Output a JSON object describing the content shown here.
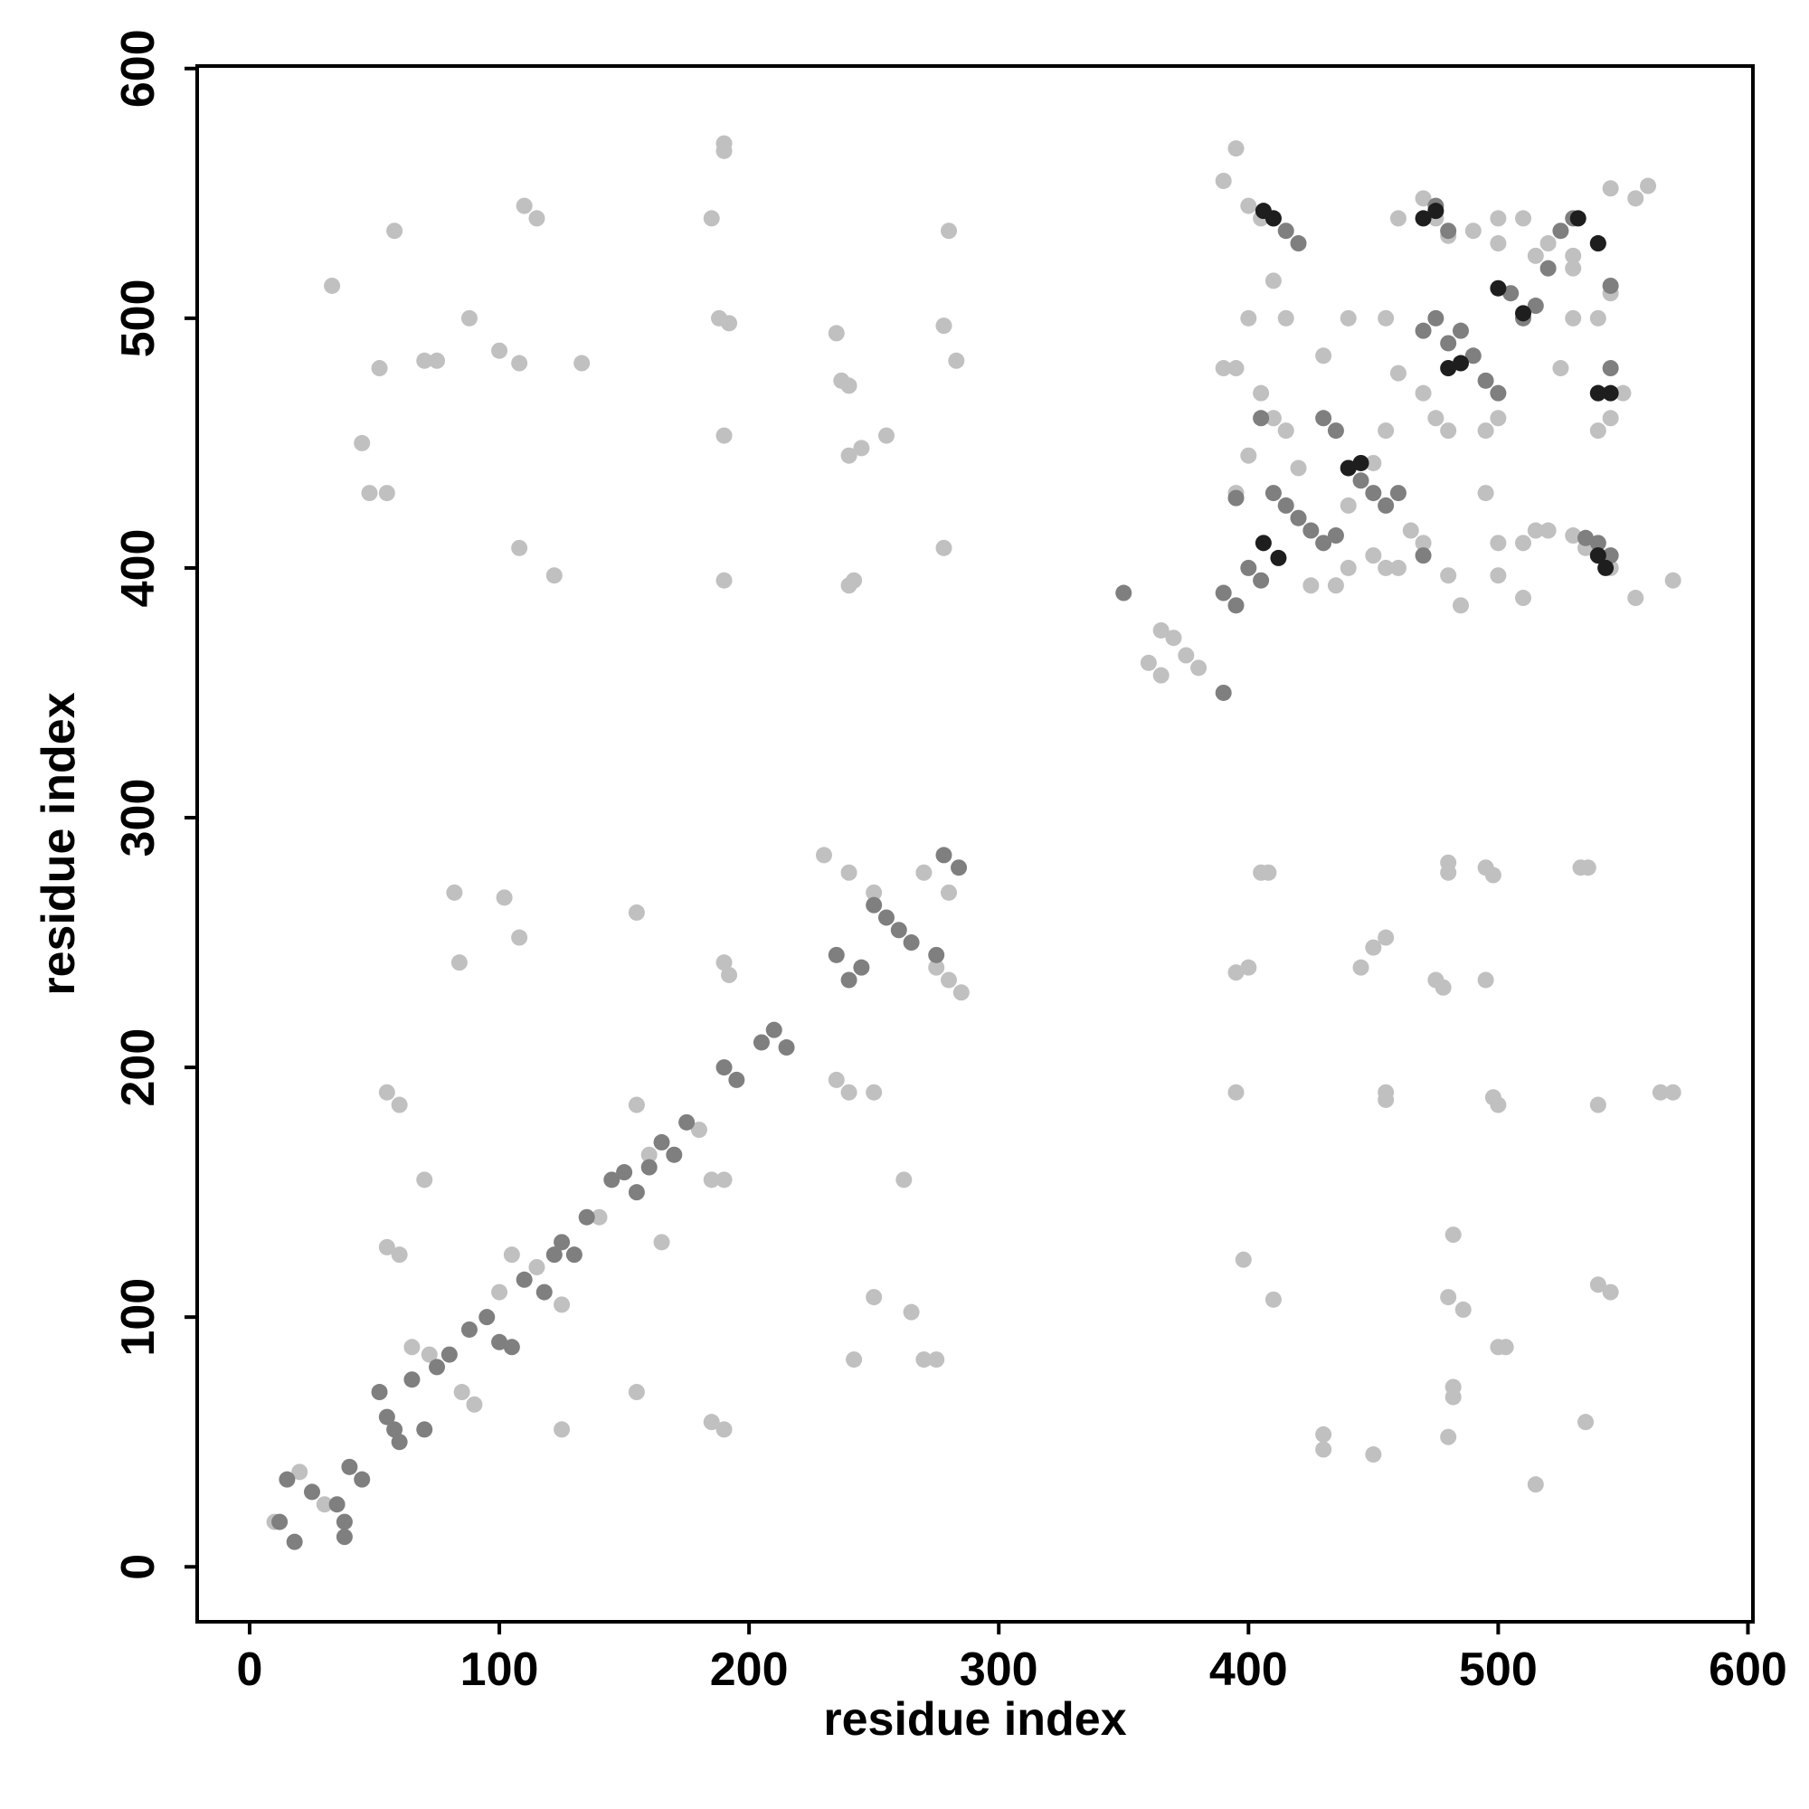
{
  "chart_data": {
    "type": "scatter",
    "x_label": "residue index",
    "y_label": "residue index",
    "xlim": [
      -21,
      602
    ],
    "ylim": [
      -22,
      601
    ],
    "xticks": [
      0,
      100,
      200,
      300,
      400,
      500,
      600
    ],
    "yticks": [
      0,
      100,
      200,
      300,
      400,
      500,
      600
    ],
    "series": [
      {
        "color": "#c0c0c0",
        "x": [
          10,
          20,
          30,
          55,
          60,
          65,
          72,
          85,
          90,
          100,
          105,
          115,
          125,
          140,
          155,
          160,
          180,
          185,
          190,
          240,
          250,
          235,
          250,
          270,
          280,
          285,
          230,
          240,
          275,
          280,
          60,
          55,
          70,
          82,
          84,
          102,
          108,
          165,
          155,
          155,
          185,
          190,
          125,
          250,
          265,
          242,
          270,
          275,
          262,
          190,
          192,
          33,
          58,
          52,
          70,
          75,
          88,
          100,
          108,
          110,
          115,
          133,
          185,
          188,
          192,
          190,
          190,
          190,
          45,
          48,
          55,
          108,
          122,
          190,
          235,
          237,
          240,
          240,
          245,
          255,
          240,
          242,
          280,
          278,
          283,
          278,
          395,
          390,
          400,
          405,
          410,
          415,
          400,
          395,
          390,
          405,
          410,
          415,
          400,
          420,
          395,
          430,
          440,
          455,
          460,
          470,
          475,
          480,
          455,
          450,
          440,
          465,
          470,
          460,
          450,
          485,
          480,
          495,
          500,
          495,
          500,
          510,
          515,
          520,
          500,
          510,
          530,
          535,
          545,
          555,
          570,
          540,
          545,
          525,
          530,
          540,
          545,
          550,
          530,
          520,
          510,
          500,
          490,
          475,
          470,
          460,
          480,
          500,
          515,
          530,
          545,
          555,
          560,
          455,
          440,
          420,
          425,
          435,
          365,
          370,
          375,
          360,
          365,
          380,
          395,
          400,
          395,
          405,
          408,
          398,
          410,
          430,
          430,
          450,
          445,
          450,
          455,
          455,
          455,
          475,
          478,
          480,
          480,
          482,
          480,
          486,
          482,
          482,
          480,
          495,
          498,
          495,
          498,
          500,
          500,
          503,
          515,
          533,
          536,
          535,
          540,
          545,
          540,
          565,
          570
        ],
        "y": [
          18,
          38,
          25,
          190,
          185,
          88,
          85,
          70,
          65,
          110,
          125,
          120,
          105,
          140,
          185,
          165,
          175,
          155,
          155,
          190,
          190,
          195,
          270,
          278,
          270,
          230,
          285,
          278,
          240,
          235,
          125,
          128,
          155,
          270,
          242,
          268,
          252,
          130,
          262,
          70,
          58,
          55,
          55,
          108,
          102,
          83,
          83,
          83,
          155,
          242,
          237,
          513,
          535,
          480,
          483,
          483,
          500,
          487,
          482,
          545,
          540,
          482,
          540,
          500,
          498,
          570,
          567,
          453,
          450,
          430,
          430,
          408,
          397,
          395,
          494,
          475,
          473,
          445,
          448,
          453,
          393,
          395,
          535,
          497,
          483,
          408,
          568,
          555,
          545,
          540,
          515,
          500,
          500,
          480,
          480,
          470,
          460,
          455,
          445,
          440,
          430,
          485,
          500,
          500,
          478,
          470,
          460,
          455,
          455,
          442,
          425,
          415,
          410,
          400,
          405,
          385,
          397,
          455,
          460,
          430,
          397,
          410,
          415,
          415,
          410,
          388,
          413,
          408,
          400,
          388,
          395,
          455,
          460,
          480,
          500,
          500,
          510,
          470,
          525,
          530,
          540,
          540,
          535,
          540,
          548,
          540,
          533,
          530,
          525,
          520,
          552,
          548,
          553,
          400,
          400,
          420,
          393,
          393,
          375,
          372,
          365,
          362,
          357,
          360,
          238,
          240,
          190,
          278,
          278,
          123,
          107,
          53,
          47,
          45,
          240,
          248,
          252,
          190,
          187,
          235,
          232,
          282,
          278,
          133,
          108,
          103,
          72,
          68,
          52,
          280,
          277,
          235,
          188,
          185,
          88,
          88,
          33,
          280,
          280,
          58,
          113,
          110,
          185,
          190,
          190
        ]
      },
      {
        "color": "#7f7f7f",
        "x": [
          12,
          15,
          18,
          25,
          35,
          38,
          40,
          38,
          45,
          52,
          55,
          58,
          60,
          65,
          70,
          75,
          80,
          88,
          95,
          100,
          105,
          110,
          118,
          122,
          125,
          130,
          135,
          145,
          150,
          155,
          160,
          165,
          170,
          175,
          190,
          195,
          205,
          210,
          215,
          235,
          240,
          245,
          250,
          255,
          260,
          265,
          275,
          278,
          284,
          350,
          390,
          390,
          395,
          400,
          405,
          410,
          415,
          420,
          425,
          430,
          435,
          440,
          445,
          450,
          455,
          460,
          470,
          480,
          485,
          490,
          495,
          500,
          505,
          510,
          515,
          520,
          525,
          530,
          540,
          545,
          540,
          545,
          535,
          540,
          545,
          410,
          415,
          420,
          405,
          395,
          475,
          480,
          430,
          435,
          470,
          475
        ],
        "y": [
          18,
          35,
          10,
          30,
          25,
          18,
          40,
          12,
          35,
          70,
          60,
          55,
          50,
          75,
          55,
          80,
          85,
          95,
          100,
          90,
          88,
          115,
          110,
          125,
          130,
          125,
          140,
          155,
          158,
          150,
          160,
          170,
          165,
          178,
          200,
          195,
          210,
          215,
          208,
          245,
          235,
          240,
          265,
          260,
          255,
          250,
          245,
          285,
          280,
          390,
          350,
          390,
          385,
          400,
          395,
          430,
          425,
          420,
          415,
          410,
          413,
          440,
          435,
          430,
          425,
          430,
          405,
          490,
          495,
          485,
          475,
          470,
          510,
          500,
          505,
          520,
          535,
          540,
          470,
          480,
          410,
          405,
          412,
          530,
          513,
          540,
          535,
          530,
          460,
          428,
          545,
          535,
          460,
          455,
          495,
          500
        ]
      },
      {
        "color": "#1e1e1e",
        "x": [
          406,
          410,
          470,
          475,
          532,
          540,
          540,
          545,
          540,
          543,
          480,
          485,
          406,
          412,
          440,
          445,
          500,
          510
        ],
        "y": [
          543,
          540,
          540,
          543,
          540,
          530,
          470,
          470,
          405,
          400,
          480,
          482,
          410,
          404,
          440,
          442,
          512,
          502
        ]
      }
    ]
  }
}
